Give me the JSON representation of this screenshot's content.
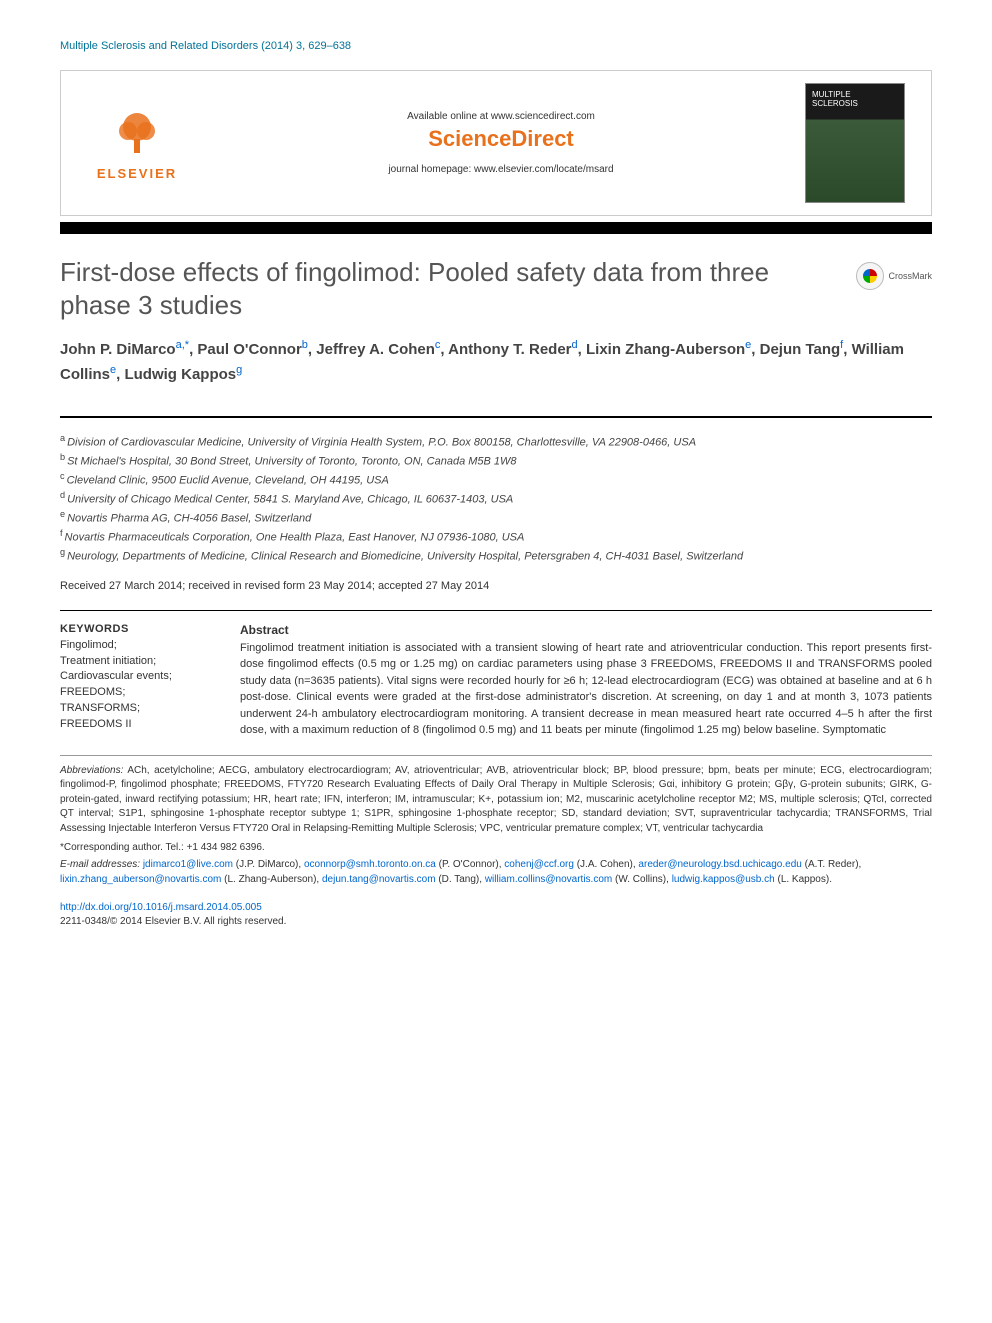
{
  "header": {
    "journal_citation": "Multiple Sclerosis and Related Disorders (2014) 3, 629–638",
    "available_text": "Available online at www.sciencedirect.com",
    "sciencedirect": "ScienceDirect",
    "homepage_text": "journal homepage: www.elsevier.com/locate/msard",
    "publisher_name": "ELSEVIER",
    "cover_title": "MULTIPLE SCLEROSIS"
  },
  "crossmark": {
    "label": "CrossMark"
  },
  "article": {
    "title": "First-dose effects of fingolimod: Pooled safety data from three phase 3 studies",
    "authors_html": "John P. DiMarco<sup class='sup-a'>a,*</sup>, Paul O'Connor<sup class='sup-a'>b</sup>, Jeffrey A. Cohen<sup class='sup-a'>c</sup>, Anthony T. Reder<sup class='sup-a'>d</sup>, Lixin Zhang-Auberson<sup class='sup-a'>e</sup>, Dejun Tang<sup class='sup-a'>f</sup>, William Collins<sup class='sup-a'>e</sup>, Ludwig Kappos<sup class='sup-a'>g</sup>"
  },
  "affiliations": [
    {
      "key": "a",
      "text": "Division of Cardiovascular Medicine, University of Virginia Health System, P.O. Box 800158, Charlottesville, VA 22908-0466, USA"
    },
    {
      "key": "b",
      "text": "St Michael's Hospital, 30 Bond Street, University of Toronto, Toronto, ON, Canada M5B 1W8"
    },
    {
      "key": "c",
      "text": "Cleveland Clinic, 9500 Euclid Avenue, Cleveland, OH 44195, USA"
    },
    {
      "key": "d",
      "text": "University of Chicago Medical Center, 5841 S. Maryland Ave, Chicago, IL 60637-1403, USA"
    },
    {
      "key": "e",
      "text": "Novartis Pharma AG, CH-4056 Basel, Switzerland"
    },
    {
      "key": "f",
      "text": "Novartis Pharmaceuticals Corporation, One Health Plaza, East Hanover, NJ 07936-1080, USA"
    },
    {
      "key": "g",
      "text": "Neurology, Departments of Medicine, Clinical Research and Biomedicine, University Hospital, Petersgraben 4, CH-4031 Basel, Switzerland"
    }
  ],
  "dates": "Received 27 March 2014; received in revised form 23 May 2014; accepted 27 May 2014",
  "keywords": {
    "heading": "KEYWORDS",
    "items": [
      "Fingolimod;",
      "Treatment initiation;",
      "Cardiovascular events;",
      "FREEDOMS;",
      "TRANSFORMS;",
      "FREEDOMS II"
    ]
  },
  "abstract": {
    "heading": "Abstract",
    "text": "Fingolimod treatment initiation is associated with a transient slowing of heart rate and atrioventricular conduction. This report presents first-dose fingolimod effects (0.5 mg or 1.25 mg) on cardiac parameters using phase 3 FREEDOMS, FREEDOMS II and TRANSFORMS pooled study data (n=3635 patients). Vital signs were recorded hourly for ≥6 h; 12-lead electrocardiogram (ECG) was obtained at baseline and at 6 h post-dose. Clinical events were graded at the first-dose administrator's discretion. At screening, on day 1 and at month 3, 1073 patients underwent 24-h ambulatory electrocardiogram monitoring. A transient decrease in mean measured heart rate occurred 4–5 h after the first dose, with a maximum reduction of 8 (fingolimod 0.5 mg) and 11 beats per minute (fingolimod 1.25 mg) below baseline. Symptomatic"
  },
  "footnotes": {
    "abbreviations_label": "Abbreviations:",
    "abbreviations_text": " ACh, acetylcholine; AECG, ambulatory electrocardiogram; AV, atrioventricular; AVB, atrioventricular block; BP, blood pressure; bpm, beats per minute; ECG, electrocardiogram; fingolimod-P, fingolimod phosphate; FREEDOMS, FTY720 Research Evaluating Effects of Daily Oral Therapy in Multiple Sclerosis; Gαi, inhibitory G protein; Gβγ, G-protein subunits; GIRK, G-protein-gated, inward rectifying potassium; HR, heart rate; IFN, interferon; IM, intramuscular; K+, potassium ion; M2, muscarinic acetylcholine receptor M2; MS, multiple sclerosis; QTcI, corrected QT interval; S1P1, sphingosine 1-phosphate receptor subtype 1; S1PR, sphingosine 1-phosphate receptor; SD, standard deviation; SVT, supraventricular tachycardia; TRANSFORMS, Trial Assessing Injectable Interferon Versus FTY720 Oral in Relapsing-Remitting Multiple Sclerosis; VPC, ventricular premature complex; VT, ventricular tachycardia",
    "corresponding": "*Corresponding author. Tel.: +1 434 982 6396.",
    "emails_label": "E-mail addresses:",
    "emails": [
      {
        "email": "jdimarco1@live.com",
        "name": "(J.P. DiMarco)"
      },
      {
        "email": "oconnorp@smh.toronto.on.ca",
        "name": "(P. O'Connor)"
      },
      {
        "email": "cohenj@ccf.org",
        "name": "(J.A. Cohen)"
      },
      {
        "email": "areder@neurology.bsd.uchicago.edu",
        "name": "(A.T. Reder)"
      },
      {
        "email": "lixin.zhang_auberson@novartis.com",
        "name": "(L. Zhang-Auberson)"
      },
      {
        "email": "dejun.tang@novartis.com",
        "name": "(D. Tang)"
      },
      {
        "email": "william.collins@novartis.com",
        "name": "(W. Collins)"
      },
      {
        "email": "ludwig.kappos@usb.ch",
        "name": "(L. Kappos)"
      }
    ]
  },
  "doi": {
    "url": "http://dx.doi.org/10.1016/j.msard.2014.05.005",
    "copyright": "2211-0348/© 2014 Elsevier B.V. All rights reserved."
  },
  "colors": {
    "link": "#0066cc",
    "brand": "#e9711c",
    "teal": "#007398"
  }
}
